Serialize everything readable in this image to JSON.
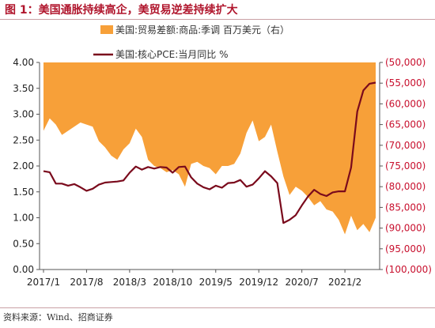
{
  "header": {
    "title": "图 1：美国通胀持续高企，美贸易逆差持续扩大"
  },
  "footer": {
    "source": "资料来源：Wind、招商证券"
  },
  "chart_data": {
    "type": "line",
    "legend": {
      "area_label": "美国:贸易差额:商品:季调 百万美元（右）",
      "line_label": "美国:核心PCE:当月同比 %",
      "placement": "top"
    },
    "x_tick_labels": [
      "2017/1",
      "2017/8",
      "2018/3",
      "2018/10",
      "2019/5",
      "2019/12",
      "2020/7",
      "2021/2"
    ],
    "y_left": {
      "min": 0,
      "max": 4,
      "tick_labels": [
        "0.00",
        "0.50",
        "1.00",
        "1.50",
        "2.00",
        "2.50",
        "3.00",
        "3.50",
        "4.00"
      ]
    },
    "y_right": {
      "min": -100000,
      "max": -50000,
      "tick_labels": [
        "(50,000)",
        "(55,000)",
        "(60,000)",
        "(65,000)",
        "(70,000)",
        "(75,000)",
        "(80,000)",
        "(85,000)",
        "(90,000)",
        "(95,000)",
        "(100,000)"
      ]
    },
    "colors": {
      "area": "#f7a039",
      "line": "#7a0a1c",
      "right_axis": "#c8102e"
    },
    "series": [
      {
        "name": "美国:贸易差额:商品:季调 百万美元（右）",
        "axis": "right",
        "type": "area",
        "x": [
          "2017-01",
          "2017-02",
          "2017-03",
          "2017-04",
          "2017-05",
          "2017-06",
          "2017-07",
          "2017-08",
          "2017-09",
          "2017-10",
          "2017-11",
          "2017-12",
          "2018-01",
          "2018-02",
          "2018-03",
          "2018-04",
          "2018-05",
          "2018-06",
          "2018-07",
          "2018-08",
          "2018-09",
          "2018-10",
          "2018-11",
          "2018-12",
          "2019-01",
          "2019-02",
          "2019-03",
          "2019-04",
          "2019-05",
          "2019-06",
          "2019-07",
          "2019-08",
          "2019-09",
          "2019-10",
          "2019-11",
          "2019-12",
          "2020-01",
          "2020-02",
          "2020-03",
          "2020-04",
          "2020-05",
          "2020-06",
          "2020-07",
          "2020-08",
          "2020-09",
          "2020-10",
          "2020-11",
          "2020-12",
          "2021-01",
          "2021-02",
          "2021-03",
          "2021-04",
          "2021-05",
          "2021-06",
          "2021-07"
        ],
        "values": [
          -66500,
          -63500,
          -65000,
          -67500,
          -66500,
          -65500,
          -64500,
          -65000,
          -65500,
          -69000,
          -70500,
          -72500,
          -73500,
          -71000,
          -69500,
          -66000,
          -68000,
          -73500,
          -75000,
          -75500,
          -76500,
          -76000,
          -77000,
          -80000,
          -74500,
          -74000,
          -75000,
          -75500,
          -77000,
          -75000,
          -75000,
          -74500,
          -72000,
          -67000,
          -64000,
          -69000,
          -68000,
          -65000,
          -71500,
          -77500,
          -82000,
          -80000,
          -81000,
          -82500,
          -84500,
          -83500,
          -85500,
          -86000,
          -88000,
          -91500,
          -87000,
          -90500,
          -89000,
          -91000,
          -87500
        ]
      },
      {
        "name": "美国:核心PCE:当月同比 %",
        "axis": "left",
        "type": "line",
        "x": [
          "2017-01",
          "2017-02",
          "2017-03",
          "2017-04",
          "2017-05",
          "2017-06",
          "2017-07",
          "2017-08",
          "2017-09",
          "2017-10",
          "2017-11",
          "2017-12",
          "2018-01",
          "2018-02",
          "2018-03",
          "2018-04",
          "2018-05",
          "2018-06",
          "2018-07",
          "2018-08",
          "2018-09",
          "2018-10",
          "2018-11",
          "2018-12",
          "2019-01",
          "2019-02",
          "2019-03",
          "2019-04",
          "2019-05",
          "2019-06",
          "2019-07",
          "2019-08",
          "2019-09",
          "2019-10",
          "2019-11",
          "2019-12",
          "2020-01",
          "2020-02",
          "2020-03",
          "2020-04",
          "2020-05",
          "2020-06",
          "2020-07",
          "2020-08",
          "2020-09",
          "2020-10",
          "2020-11",
          "2020-12",
          "2021-01",
          "2021-02",
          "2021-03",
          "2021-04",
          "2021-05",
          "2021-06",
          "2021-07"
        ],
        "values": [
          1.9,
          1.88,
          1.66,
          1.66,
          1.62,
          1.65,
          1.59,
          1.52,
          1.56,
          1.64,
          1.68,
          1.69,
          1.7,
          1.72,
          1.87,
          1.99,
          1.93,
          1.98,
          1.95,
          1.98,
          1.97,
          1.87,
          1.98,
          1.99,
          1.78,
          1.66,
          1.59,
          1.55,
          1.62,
          1.58,
          1.67,
          1.68,
          1.73,
          1.6,
          1.64,
          1.76,
          1.9,
          1.8,
          1.67,
          0.9,
          0.96,
          1.05,
          1.24,
          1.41,
          1.54,
          1.46,
          1.42,
          1.49,
          1.51,
          1.51,
          1.97,
          3.05,
          3.46,
          3.59,
          3.61
        ]
      }
    ]
  }
}
